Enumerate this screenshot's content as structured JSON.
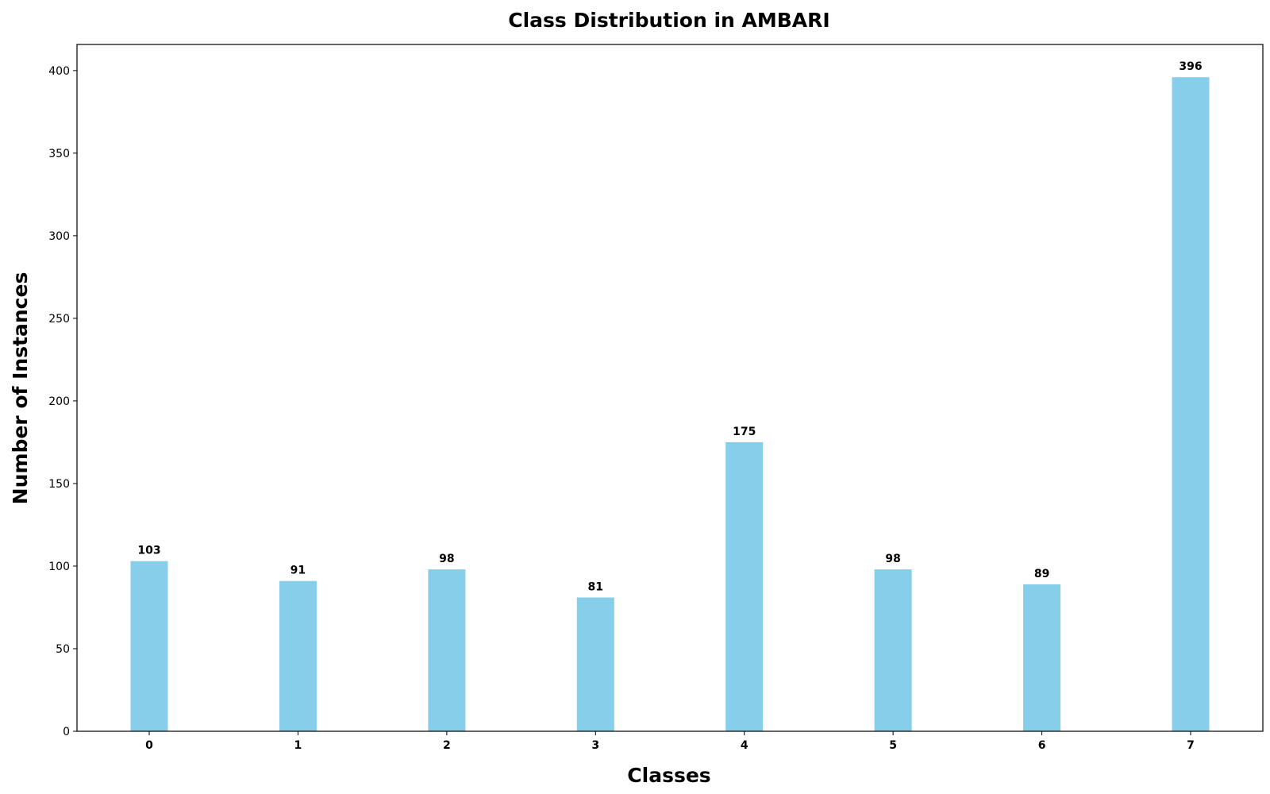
{
  "chart_data": {
    "type": "bar",
    "title": "Class Distribution in AMBARI",
    "xlabel": "Classes",
    "ylabel": "Number of Instances",
    "categories": [
      "0",
      "1",
      "2",
      "3",
      "4",
      "5",
      "6",
      "7"
    ],
    "values": [
      103,
      91,
      98,
      81,
      175,
      98,
      89,
      396
    ],
    "data_labels": [
      "103",
      "91",
      "98",
      "81",
      "175",
      "98",
      "89",
      "396"
    ],
    "yticks": [
      0,
      50,
      100,
      150,
      200,
      250,
      300,
      350,
      400
    ],
    "ylim": [
      0,
      415.8
    ],
    "grid": false,
    "legend": "none",
    "bar_color": "#87CEEB",
    "axis_color": "#000000"
  }
}
